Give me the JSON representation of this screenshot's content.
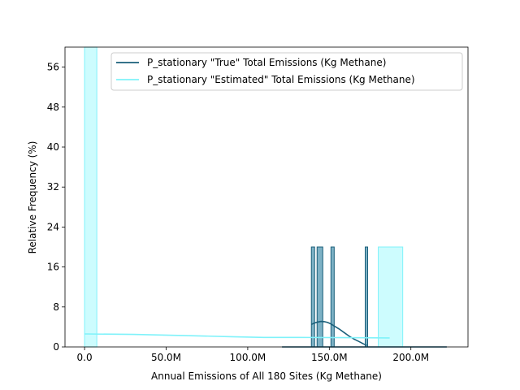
{
  "chart_data": {
    "type": "histogram",
    "xlabel": "Annual Emissions of All 180 Sites (Kg Methane)",
    "ylabel": "Relative Frequency (%)",
    "xlim": [
      -12000000,
      235000000
    ],
    "ylim": [
      0,
      60
    ],
    "x_ticks": [
      {
        "value": 0,
        "label": "0.0"
      },
      {
        "value": 50000000,
        "label": "50.0M"
      },
      {
        "value": 100000000,
        "label": "100.0M"
      },
      {
        "value": 150000000,
        "label": "150.0M"
      },
      {
        "value": 200000000,
        "label": "200.0M"
      }
    ],
    "y_ticks": [
      0,
      8,
      16,
      24,
      32,
      40,
      48,
      56
    ],
    "legend_position": "top-right",
    "series": [
      {
        "name": "P_stationary \"True\" Total Emissions (Kg Methane)",
        "color": "#1a5f7a",
        "fill": "#6fa8bf",
        "bins": [
          {
            "x0": 139000000,
            "x1": 141000000,
            "value": 20
          },
          {
            "x0": 142500000,
            "x1": 146000000,
            "value": 20
          },
          {
            "x0": 151000000,
            "x1": 153000000,
            "value": 20
          },
          {
            "x0": 172000000,
            "x1": 173500000,
            "value": 20
          }
        ],
        "kde": {
          "x": [
            139000000,
            141000000,
            143000000,
            145000000,
            147000000,
            149000000,
            151000000,
            153000000,
            156000000,
            159000000,
            162000000,
            165000000,
            168000000,
            171000000,
            173000000
          ],
          "y": [
            4.5,
            4.8,
            5.0,
            5.1,
            5.05,
            4.9,
            4.6,
            4.2,
            3.6,
            2.9,
            2.2,
            1.6,
            1.1,
            0.6,
            0.3
          ]
        },
        "baseline_range": [
          121000000,
          222000000
        ]
      },
      {
        "name": "P_stationary \"Estimated\" Total Emissions (Kg Methane)",
        "color": "#7ff2fa",
        "fill": "#c4fbfe",
        "bins": [
          {
            "x0": 0,
            "x1": 7500000,
            "value": 60
          },
          {
            "x0": 180000000,
            "x1": 195000000,
            "value": 20
          }
        ],
        "kde": {
          "x": [
            0,
            30000000,
            60000000,
            90000000,
            110000000,
            130000000,
            160000000,
            187000000
          ],
          "y": [
            2.6,
            2.5,
            2.3,
            2.05,
            1.9,
            1.9,
            1.85,
            1.8
          ]
        }
      }
    ]
  }
}
